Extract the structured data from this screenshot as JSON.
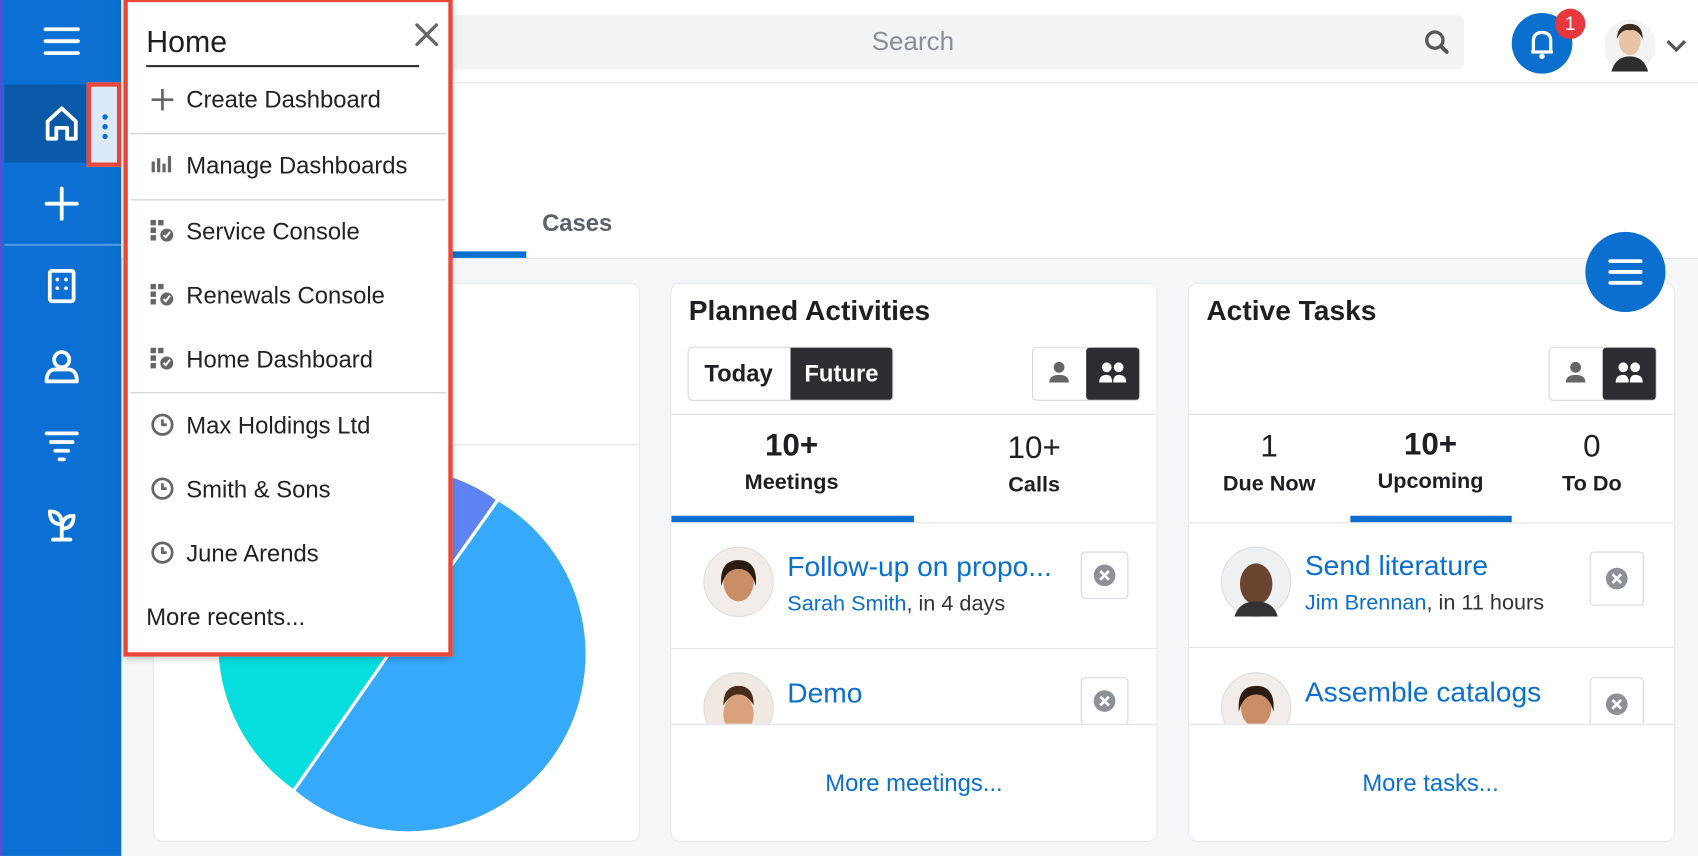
{
  "search": {
    "placeholder": "Search"
  },
  "notifications": {
    "count": 1
  },
  "menu": {
    "title": "Home",
    "items": [
      "Create Dashboard",
      "Manage Dashboards",
      "Service Console",
      "Renewals Console",
      "Home Dashboard",
      "Max Holdings Ltd",
      "Smith & Sons",
      "June Arends"
    ],
    "more": "More recents..."
  },
  "tabs": [
    "Cases"
  ],
  "planned_activities": {
    "title": "Planned Activities",
    "filters": [
      "Today",
      "Future"
    ],
    "stats": [
      {
        "count": "10+",
        "label": "Meetings"
      },
      {
        "count": "10+",
        "label": "Calls"
      }
    ],
    "items": [
      {
        "title": "Follow-up on propo...",
        "person": "Sarah Smith",
        "when": ", in 4 days"
      },
      {
        "title": "Demo"
      }
    ],
    "more": "More meetings..."
  },
  "active_tasks": {
    "title": "Active Tasks",
    "stats": [
      {
        "count": 1,
        "label": "Due Now"
      },
      {
        "count": "10+",
        "label": "Upcoming"
      },
      {
        "count": 0,
        "label": "To Do"
      }
    ],
    "items": [
      {
        "title": "Send literature",
        "person": "Jim Brennan",
        "when": ", in 11 hours"
      },
      {
        "title": "Assemble catalogs"
      }
    ],
    "more": "More tasks..."
  }
}
